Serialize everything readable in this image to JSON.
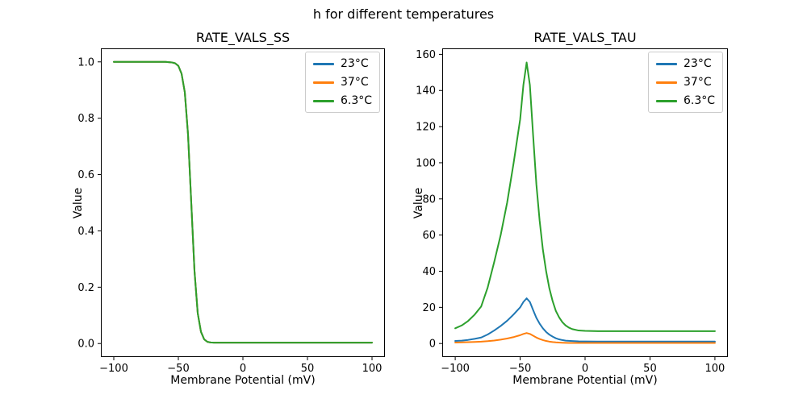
{
  "figure": {
    "suptitle": "h for different temperatures"
  },
  "palette": {
    "blue": "#1f77b4",
    "orange": "#ff7f0e",
    "green": "#2ca02c",
    "axis": "#000000",
    "legend_border": "#cccccc",
    "background": "#ffffff"
  },
  "chart_data": [
    {
      "id": "ss",
      "type": "line",
      "title": "RATE_VALS_SS",
      "xlabel": "Membrane Potential (mV)",
      "ylabel": "Value",
      "xlim": [
        -110,
        110
      ],
      "ylim": [
        -0.048,
        1.048
      ],
      "xticks": [
        -100,
        -50,
        0,
        50,
        100
      ],
      "xtick_labels": [
        "−100",
        "−50",
        "0",
        "50",
        "100"
      ],
      "yticks": [
        0.0,
        0.2,
        0.4,
        0.6,
        0.8,
        1.0
      ],
      "ytick_labels": [
        "0.0",
        "0.2",
        "0.4",
        "0.6",
        "0.8",
        "1.0"
      ],
      "grid": false,
      "legend_position": "upper right",
      "x": [
        -100,
        -90,
        -80,
        -70,
        -65,
        -60,
        -57.5,
        -55,
        -52.5,
        -50,
        -47.5,
        -45,
        -42.5,
        -40,
        -37.5,
        -35,
        -32.5,
        -30,
        -27.5,
        -25,
        -22.5,
        -20,
        -15,
        -10,
        -5,
        0,
        10,
        20,
        30,
        40,
        50,
        60,
        70,
        80,
        90,
        100
      ],
      "series": [
        {
          "name": "23°C",
          "color": "#1f77b4",
          "values": [
            1.0,
            1.0,
            1.0,
            1.0,
            1.0,
            1.0,
            0.999,
            0.998,
            0.995,
            0.986,
            0.958,
            0.892,
            0.742,
            0.5,
            0.258,
            0.108,
            0.042,
            0.015,
            0.006,
            0.004,
            0.003,
            0.003,
            0.003,
            0.003,
            0.003,
            0.003,
            0.003,
            0.003,
            0.003,
            0.003,
            0.003,
            0.003,
            0.003,
            0.003,
            0.003,
            0.003
          ]
        },
        {
          "name": "37°C",
          "color": "#ff7f0e",
          "values": [
            1.0,
            1.0,
            1.0,
            1.0,
            1.0,
            1.0,
            0.999,
            0.998,
            0.995,
            0.986,
            0.958,
            0.892,
            0.742,
            0.5,
            0.258,
            0.108,
            0.042,
            0.015,
            0.006,
            0.004,
            0.003,
            0.003,
            0.003,
            0.003,
            0.003,
            0.003,
            0.003,
            0.003,
            0.003,
            0.003,
            0.003,
            0.003,
            0.003,
            0.003,
            0.003,
            0.003
          ]
        },
        {
          "name": "6.3°C",
          "color": "#2ca02c",
          "values": [
            1.0,
            1.0,
            1.0,
            1.0,
            1.0,
            1.0,
            0.999,
            0.998,
            0.995,
            0.986,
            0.958,
            0.892,
            0.742,
            0.5,
            0.258,
            0.108,
            0.042,
            0.015,
            0.006,
            0.004,
            0.003,
            0.003,
            0.003,
            0.003,
            0.003,
            0.003,
            0.003,
            0.003,
            0.003,
            0.003,
            0.003,
            0.003,
            0.003,
            0.003,
            0.003,
            0.003
          ]
        }
      ]
    },
    {
      "id": "tau",
      "type": "line",
      "title": "RATE_VALS_TAU",
      "xlabel": "Membrane Potential (mV)",
      "ylabel": "Value",
      "xlim": [
        -110,
        110
      ],
      "ylim": [
        -7.5,
        163.3
      ],
      "xticks": [
        -100,
        -50,
        0,
        50,
        100
      ],
      "xtick_labels": [
        "−100",
        "−50",
        "0",
        "50",
        "100"
      ],
      "yticks": [
        0,
        20,
        40,
        60,
        80,
        100,
        120,
        140,
        160
      ],
      "ytick_labels": [
        "0",
        "20",
        "40",
        "60",
        "80",
        "100",
        "120",
        "140",
        "160"
      ],
      "grid": false,
      "legend_position": "upper right",
      "x": [
        -100,
        -95,
        -90,
        -85,
        -80,
        -75,
        -70,
        -65,
        -60,
        -55,
        -50,
        -47.5,
        -45,
        -42.5,
        -40,
        -37.5,
        -35,
        -32.5,
        -30,
        -27.5,
        -25,
        -22.5,
        -20,
        -17.5,
        -15,
        -12.5,
        -10,
        -5,
        0,
        10,
        20,
        30,
        40,
        50,
        60,
        70,
        80,
        90,
        100
      ],
      "series": [
        {
          "name": "23°C",
          "color": "#1f77b4",
          "values": [
            1.4,
            1.6,
            2.0,
            2.6,
            3.3,
            5.0,
            7.2,
            9.7,
            12.6,
            16.1,
            20.0,
            23.0,
            25.0,
            23.0,
            18.5,
            14.2,
            11.0,
            8.4,
            6.4,
            4.9,
            3.8,
            2.9,
            2.3,
            1.9,
            1.6,
            1.45,
            1.35,
            1.2,
            1.15,
            1.1,
            1.1,
            1.1,
            1.1,
            1.1,
            1.1,
            1.1,
            1.1,
            1.1,
            1.1
          ]
        },
        {
          "name": "37°C",
          "color": "#ff7f0e",
          "values": [
            0.55,
            0.63,
            0.74,
            0.88,
            1.05,
            1.3,
            1.65,
            2.15,
            2.75,
            3.55,
            4.6,
            5.3,
            5.8,
            5.3,
            4.3,
            3.3,
            2.5,
            1.9,
            1.4,
            1.05,
            0.8,
            0.62,
            0.5,
            0.42,
            0.37,
            0.33,
            0.31,
            0.3,
            0.29,
            0.28,
            0.28,
            0.28,
            0.28,
            0.28,
            0.28,
            0.28,
            0.28,
            0.28,
            0.28
          ]
        },
        {
          "name": "6.3°C",
          "color": "#2ca02c",
          "values": [
            8.4,
            10,
            12.5,
            16,
            20.5,
            31,
            45,
            60,
            78,
            100,
            124,
            143,
            155.5,
            143,
            115,
            88,
            68,
            52,
            40,
            30.5,
            23.5,
            18,
            14.5,
            11.8,
            10,
            8.8,
            8.0,
            7.2,
            7.0,
            6.8,
            6.8,
            6.8,
            6.8,
            6.8,
            6.8,
            6.8,
            6.8,
            6.8,
            6.8
          ]
        }
      ]
    }
  ]
}
